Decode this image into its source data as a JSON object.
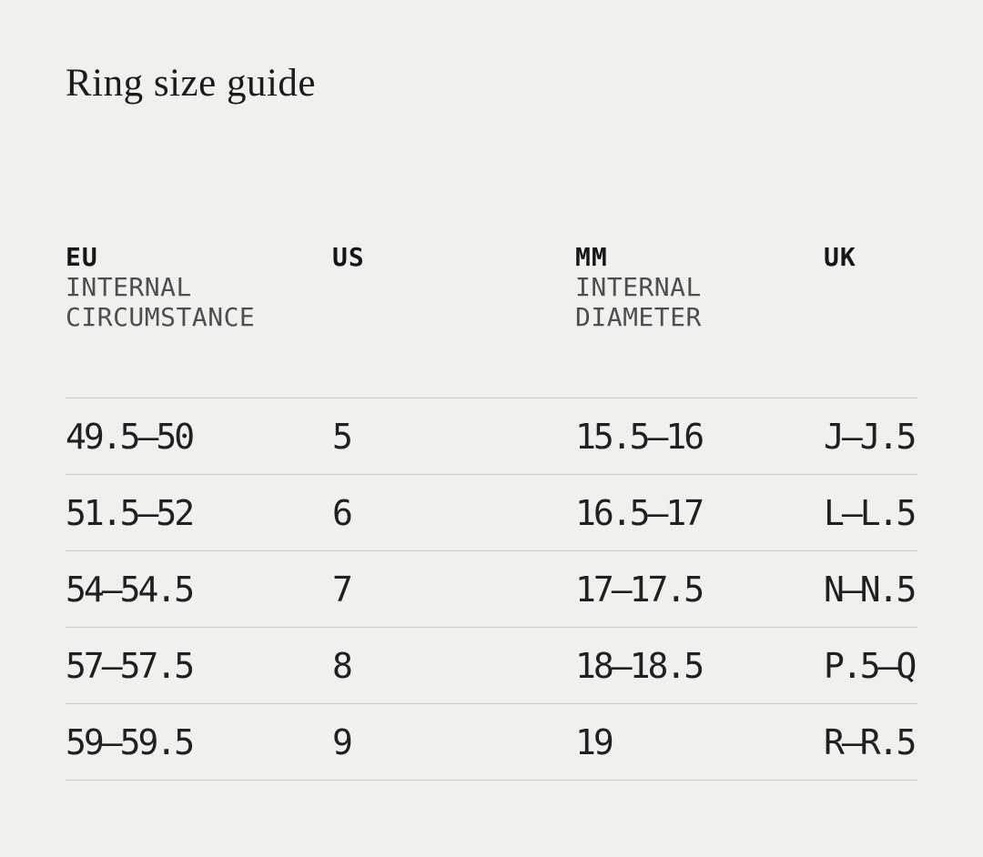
{
  "title": "Ring size guide",
  "table": {
    "columns": [
      {
        "id": "eu",
        "label": "EU",
        "sub_line1": "INTERNAL",
        "sub_line2": "CIRCUMSTANCE"
      },
      {
        "id": "us",
        "label": "US"
      },
      {
        "id": "mm",
        "label": "MM",
        "sub_line1": "INTERNAL",
        "sub_line2": "DIAMETER"
      },
      {
        "id": "uk",
        "label": "UK"
      }
    ],
    "rows": [
      {
        "eu": "49.5—50",
        "us": "5",
        "mm": "15.5—16",
        "uk": "J—J.5"
      },
      {
        "eu": "51.5—52",
        "us": "6",
        "mm": "16.5—17",
        "uk": "L—L.5"
      },
      {
        "eu": "54—54.5",
        "us": "7",
        "mm": "17—17.5",
        "uk": "N—N.5"
      },
      {
        "eu": "57—57.5",
        "us": "8",
        "mm": "18—18.5",
        "uk": "P.5—Q"
      },
      {
        "eu": "59—59.5",
        "us": "9",
        "mm": "19",
        "uk": "R—R.5"
      }
    ]
  },
  "colors": {
    "background": "#f0f0ee",
    "title_text": "#1b1b1b",
    "header_text": "#161616",
    "subheader_text": "#4e4e4e",
    "data_text": "#202020",
    "rule": "#c7c7c5"
  }
}
